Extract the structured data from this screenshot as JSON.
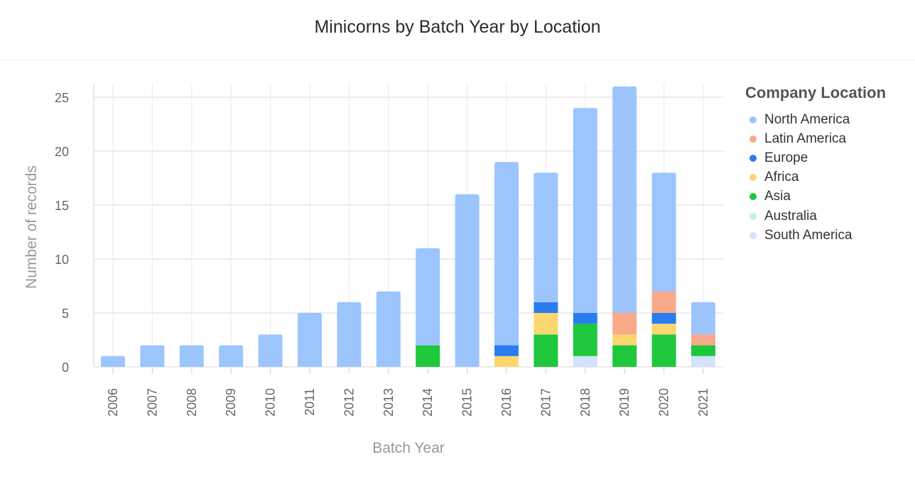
{
  "chart_data": {
    "type": "bar",
    "stacked": true,
    "title": "Minicorns by Batch Year by Location",
    "xlabel": "Batch Year",
    "ylabel": "Number of records",
    "ylim": [
      0,
      26
    ],
    "yticks": [
      0,
      5,
      10,
      15,
      20,
      25
    ],
    "grid": true,
    "legend_title": "Company Location",
    "legend_position": "right",
    "categories": [
      "2006",
      "2007",
      "2008",
      "2009",
      "2010",
      "2011",
      "2012",
      "2013",
      "2014",
      "2015",
      "2016",
      "2017",
      "2018",
      "2019",
      "2020",
      "2021"
    ],
    "series": [
      {
        "name": "South America",
        "color": "#d3e2fd",
        "values": [
          0,
          0,
          0,
          0,
          0,
          0,
          0,
          0,
          0,
          0,
          0,
          0,
          1,
          0,
          0,
          1
        ]
      },
      {
        "name": "Australia",
        "color": "#c2f0ee",
        "values": [
          0,
          0,
          0,
          0,
          0,
          0,
          0,
          0,
          0,
          0,
          0,
          0,
          0,
          0,
          0,
          0
        ]
      },
      {
        "name": "Asia",
        "color": "#1ec73c",
        "values": [
          0,
          0,
          0,
          0,
          0,
          0,
          0,
          0,
          2,
          0,
          0,
          3,
          3,
          2,
          3,
          1
        ]
      },
      {
        "name": "Africa",
        "color": "#fcd66f",
        "values": [
          0,
          0,
          0,
          0,
          0,
          0,
          0,
          0,
          0,
          0,
          1,
          2,
          0,
          1,
          1,
          0
        ]
      },
      {
        "name": "Europe",
        "color": "#2c7cf1",
        "values": [
          0,
          0,
          0,
          0,
          0,
          0,
          0,
          0,
          0,
          0,
          1,
          1,
          1,
          0,
          1,
          0
        ]
      },
      {
        "name": "Latin America",
        "color": "#f9a98a",
        "values": [
          0,
          0,
          0,
          0,
          0,
          0,
          0,
          0,
          0,
          0,
          0,
          0,
          0,
          2,
          2,
          1
        ]
      },
      {
        "name": "North America",
        "color": "#9cc5fe",
        "values": [
          1,
          2,
          2,
          2,
          3,
          5,
          6,
          7,
          9,
          16,
          17,
          12,
          19,
          21,
          11,
          3
        ]
      }
    ],
    "legend_order": [
      "North America",
      "Latin America",
      "Europe",
      "Africa",
      "Asia",
      "Australia",
      "South America"
    ]
  }
}
